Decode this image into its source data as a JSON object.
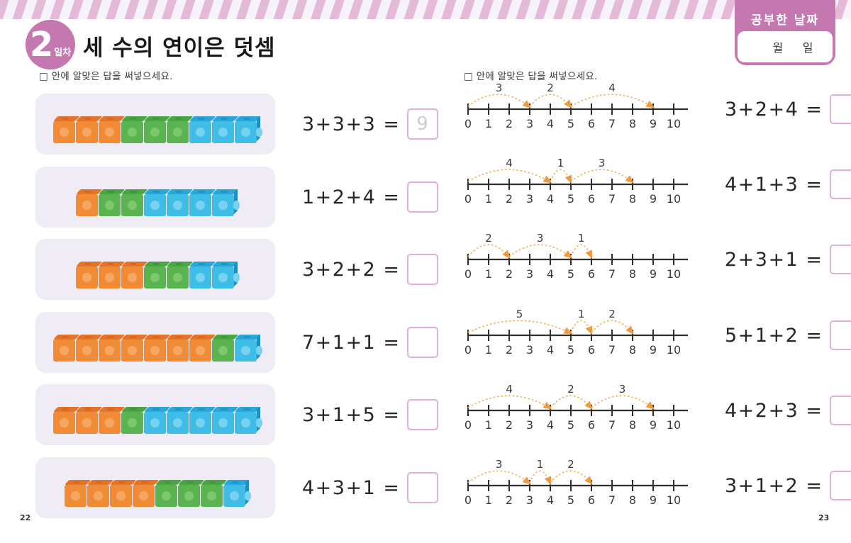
{
  "header": {
    "lesson_number": "2",
    "lesson_label": "일차",
    "title": "세 수의 연이은 덧셈",
    "date_title": "공부한 날짜",
    "month_label": "월",
    "day_label": "일"
  },
  "left_page": {
    "instruction": "□ 안에 알맞은 답을 써넣으세요.",
    "page_number": "22",
    "problems": [
      {
        "equation": "3+3+3 =",
        "answer": "9",
        "cubes": [
          {
            "color": "orange",
            "count": 3
          },
          {
            "color": "green",
            "count": 3
          },
          {
            "color": "blue",
            "count": 3
          }
        ]
      },
      {
        "equation": "1+2+4 =",
        "answer": "",
        "cubes": [
          {
            "color": "orange",
            "count": 1
          },
          {
            "color": "green",
            "count": 2
          },
          {
            "color": "blue",
            "count": 4
          }
        ]
      },
      {
        "equation": "3+2+2 =",
        "answer": "",
        "cubes": [
          {
            "color": "orange",
            "count": 3
          },
          {
            "color": "green",
            "count": 2
          },
          {
            "color": "blue",
            "count": 2
          }
        ]
      },
      {
        "equation": "7+1+1 =",
        "answer": "",
        "cubes": [
          {
            "color": "orange",
            "count": 7
          },
          {
            "color": "green",
            "count": 1
          },
          {
            "color": "blue",
            "count": 1
          }
        ]
      },
      {
        "equation": "3+1+5 =",
        "answer": "",
        "cubes": [
          {
            "color": "orange",
            "count": 3
          },
          {
            "color": "green",
            "count": 1
          },
          {
            "color": "blue",
            "count": 5
          }
        ]
      },
      {
        "equation": "4+3+1 =",
        "answer": "",
        "cubes": [
          {
            "color": "orange",
            "count": 4
          },
          {
            "color": "green",
            "count": 3
          },
          {
            "color": "blue",
            "count": 1
          }
        ]
      }
    ]
  },
  "right_page": {
    "instruction": "□ 안에 알맞은 답을 써넣으세요.",
    "page_number": "23",
    "number_line": {
      "min": 0,
      "max": 10
    },
    "problems": [
      {
        "equation": "3+2+4 =",
        "answer": "",
        "jumps": [
          3,
          2,
          4
        ]
      },
      {
        "equation": "4+1+3 =",
        "answer": "",
        "jumps": [
          4,
          1,
          3
        ]
      },
      {
        "equation": "2+3+1 =",
        "answer": "",
        "jumps": [
          2,
          3,
          1
        ]
      },
      {
        "equation": "5+1+2 =",
        "answer": "",
        "jumps": [
          5,
          1,
          2
        ]
      },
      {
        "equation": "4+2+3 =",
        "answer": "",
        "jumps": [
          4,
          2,
          3
        ]
      },
      {
        "equation": "3+1+2 =",
        "answer": "",
        "jumps": [
          3,
          1,
          2
        ]
      }
    ]
  },
  "colors": {
    "accent_pink": "#C577AF",
    "stripe_pink": "#E5BAD8",
    "stripe_light": "#F6F3FA",
    "panel_lavender": "#EFECF6",
    "answer_box_border": "#DFB0DE",
    "faint_answer": "#CDCBD6",
    "arc_orange": "#F8B158",
    "arc_arrow": "#F09A3C",
    "cube_orange": {
      "face": "#F18B36",
      "top": "#E3752A",
      "stud": "#F5A865",
      "slot": "#D9661F",
      "side": "#D2611E"
    },
    "cube_green": {
      "face": "#5AB450",
      "top": "#4AA645",
      "stud": "#7FC671",
      "slot": "#3E9738",
      "side": "#3E9038"
    },
    "cube_blue": {
      "face": "#3EBDE7",
      "top": "#2AA7DA",
      "stud": "#79D2F1",
      "slot": "#1F93C8",
      "side": "#1E8FC0"
    }
  }
}
